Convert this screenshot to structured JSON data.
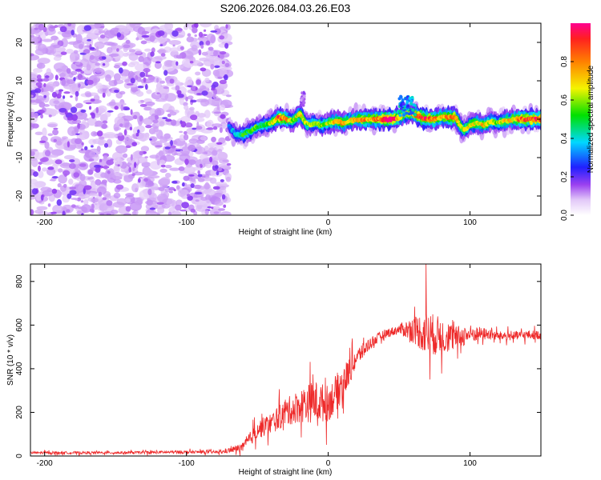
{
  "title": "S206.2026.084.03.26.E03",
  "chart_data": [
    {
      "type": "heatmap",
      "xlabel": "Height of straight line (km)",
      "ylabel": "Frequency (Hz)",
      "xlim": [
        -210,
        150
      ],
      "ylim": [
        -25,
        25
      ],
      "xticks": [
        -200,
        -100,
        0,
        100
      ],
      "yticks": [
        -20,
        -10,
        0,
        10,
        20
      ],
      "colorbar": {
        "label": "Normalized spectral amplitude",
        "range": [
          0,
          1
        ],
        "ticks": [
          0.0,
          0.2,
          0.4,
          0.6,
          0.8
        ]
      },
      "noise_region_x": [
        -210,
        -70
      ],
      "ridge": {
        "x": [
          -70,
          -65,
          -60,
          -55,
          -50,
          -45,
          -40,
          -35,
          -30,
          -25,
          -20,
          -15,
          -10,
          -5,
          0,
          5,
          10,
          15,
          20,
          25,
          30,
          35,
          40,
          45,
          50,
          55,
          60,
          65,
          70,
          75,
          80,
          85,
          90,
          95,
          100,
          105,
          110,
          115,
          120,
          125,
          130,
          135,
          140,
          145,
          150
        ],
        "freq": [
          -2,
          -4,
          -4,
          -3,
          -2,
          -1.5,
          -1,
          0.5,
          0,
          -0.5,
          1.5,
          -1.5,
          -1,
          -1.5,
          -1,
          -0.5,
          -1,
          -0.5,
          0,
          0,
          0,
          0,
          0,
          0,
          0.5,
          1.5,
          1.5,
          0.5,
          0,
          0,
          0.5,
          0.5,
          0.5,
          -3,
          -1.5,
          -1,
          -1.5,
          -0.5,
          -1,
          -0.5,
          0,
          0,
          0,
          0,
          0
        ],
        "amplitude": [
          0.3,
          0.4,
          0.5,
          0.5,
          0.55,
          0.5,
          0.6,
          0.85,
          0.8,
          0.6,
          0.7,
          0.6,
          0.55,
          0.6,
          0.6,
          0.7,
          0.75,
          0.7,
          0.7,
          0.8,
          0.75,
          0.8,
          0.95,
          0.95,
          0.8,
          0.6,
          0.75,
          0.9,
          0.9,
          0.8,
          0.7,
          0.8,
          0.8,
          0.6,
          0.65,
          0.7,
          0.7,
          0.6,
          0.6,
          0.7,
          0.7,
          0.8,
          0.9,
          0.9,
          0.85
        ]
      }
    },
    {
      "type": "line",
      "xlabel": "Height of straight line (km)",
      "ylabel": "SNR (10 * v/v)",
      "xlim": [
        -210,
        150
      ],
      "ylim": [
        0,
        880
      ],
      "xticks": [
        -200,
        -100,
        0,
        100
      ],
      "yticks": [
        0,
        200,
        400,
        600,
        800
      ],
      "color": "#ee2a2a",
      "envelope": {
        "x": [
          -210,
          -150,
          -100,
          -75,
          -60,
          -50,
          -40,
          -30,
          -20,
          -10,
          0,
          10,
          20,
          30,
          40,
          50,
          60,
          70,
          80,
          90,
          100,
          110,
          120,
          130,
          140,
          150
        ],
        "mean": [
          15,
          15,
          18,
          18,
          40,
          120,
          150,
          200,
          230,
          250,
          240,
          330,
          450,
          520,
          560,
          580,
          580,
          560,
          550,
          540,
          560,
          560,
          550,
          550,
          555,
          555
        ],
        "spread": [
          8,
          8,
          10,
          10,
          30,
          60,
          70,
          90,
          110,
          140,
          120,
          120,
          60,
          40,
          30,
          30,
          90,
          150,
          120,
          80,
          60,
          40,
          30,
          30,
          30,
          30
        ]
      },
      "peak": {
        "x": 69,
        "y": 880
      }
    }
  ]
}
